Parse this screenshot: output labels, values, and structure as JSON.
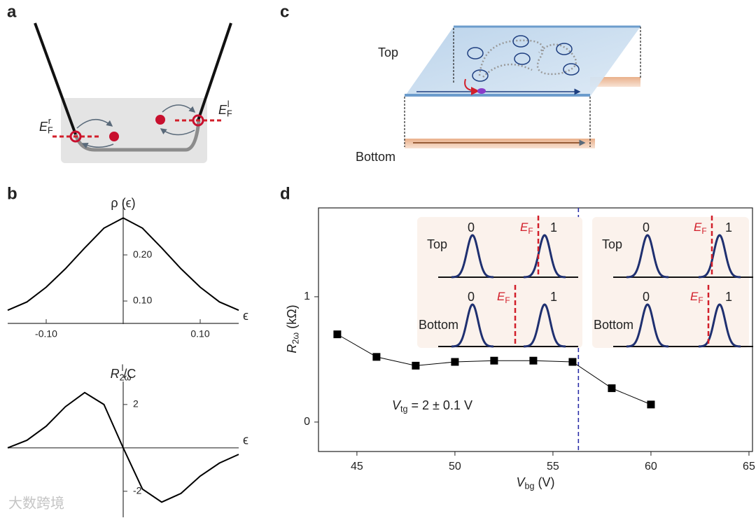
{
  "panel_labels": [
    "a",
    "b",
    "c",
    "d"
  ],
  "diagram_a": {
    "left_level": {
      "main": "E",
      "sub": "F",
      "sup": "r"
    },
    "right_level": {
      "main": "E",
      "sub": "F",
      "sup": "l"
    }
  },
  "diagram_c": {
    "top": "Top",
    "bottom": "Bottom"
  },
  "inset": {
    "top": "Top",
    "bottom": "Bottom",
    "level0": "0",
    "level1": "1",
    "fermi": {
      "main": "E",
      "sub": "F"
    }
  },
  "watermark": "大数跨境",
  "chart_data": [
    {
      "type": "line",
      "xlabel": "ϵ",
      "ylabel": "ρ (ϵ)",
      "color": "#000000",
      "x": [
        -0.15,
        -0.125,
        -0.1,
        -0.075,
        -0.05,
        -0.025,
        0,
        0.025,
        0.05,
        0.075,
        0.1,
        0.125,
        0.15
      ],
      "values": [
        0.08,
        0.098,
        0.13,
        0.17,
        0.215,
        0.258,
        0.28,
        0.258,
        0.215,
        0.17,
        0.13,
        0.098,
        0.08
      ],
      "xlim": [
        -0.15,
        0.15
      ],
      "ylim": [
        0.05,
        0.32
      ],
      "xticks": [
        {
          "value": -0.1,
          "label": "-0.10"
        },
        {
          "value": 0.1,
          "label": "0.10"
        }
      ],
      "yticks": [
        {
          "value": 0.1,
          "label": "0.10"
        },
        {
          "value": 0.2,
          "label": "0.20"
        }
      ]
    },
    {
      "type": "line",
      "xlabel": "ϵ",
      "ylabel": {
        "main": "R",
        "sup": "l",
        "sub": "2ω",
        "rest": "/C"
      },
      "color": "#000000",
      "x": [
        -0.15,
        -0.125,
        -0.1,
        -0.075,
        -0.05,
        -0.025,
        0,
        0.025,
        0.05,
        0.075,
        0.1,
        0.125,
        0.15
      ],
      "values": [
        0,
        0.35,
        1.0,
        1.9,
        2.55,
        2.0,
        0,
        -1.9,
        -2.5,
        -2.1,
        -1.3,
        -0.7,
        -0.3
      ],
      "xlim": [
        -0.15,
        0.15
      ],
      "ylim": [
        -3.2,
        3.06
      ],
      "yticks": [
        -2,
        2
      ]
    },
    {
      "type": "line",
      "xlabel": {
        "main": "V",
        "sub": "bg",
        "rest": " (V)"
      },
      "ylabel": {
        "main": "R",
        "sub": "2ω",
        "rest": " (kΩ)"
      },
      "annotation": {
        "main": "V",
        "sub": "tg",
        "rest": " = 2 ± 0.1 V"
      },
      "color": "#000000",
      "marker": "square",
      "x": [
        44,
        46,
        48,
        50,
        52,
        54,
        56,
        58,
        60
      ],
      "values": [
        0.7,
        0.52,
        0.45,
        0.48,
        0.49,
        0.49,
        0.48,
        0.27,
        0.14
      ],
      "vline": 56.3,
      "vline_color": "#2b2fa8",
      "xlim": [
        43.04,
        65.18
      ],
      "ylim": [
        -0.235,
        1.709
      ],
      "xticks": [
        45,
        50,
        55,
        60,
        65
      ],
      "yticks": [
        0,
        1
      ]
    }
  ]
}
